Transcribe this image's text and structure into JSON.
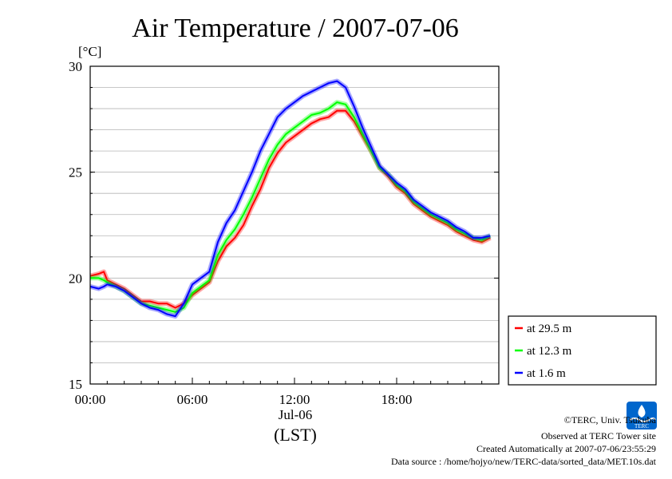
{
  "chart_data": {
    "type": "line",
    "title": "Air Temperature / 2007-07-06",
    "ylabel": "[°C]",
    "ylim": [
      15,
      30
    ],
    "yticks": [
      "15",
      "20",
      "25",
      "30"
    ],
    "xlim": [
      0,
      24
    ],
    "xticks": [
      "00:00",
      "06:00",
      "12:00",
      "18:00"
    ],
    "x_date_label": "Jul-06",
    "x_unit_label": "(LST)",
    "grid": true,
    "legend_position": "bottom-right outside",
    "series": [
      {
        "name": "at 29.5 m",
        "color": "#ff0000",
        "x": [
          0,
          0.5,
          0.8,
          1,
          1.5,
          2,
          2.5,
          3,
          3.5,
          4,
          4.5,
          5,
          5.5,
          6,
          6.5,
          7,
          7.5,
          8,
          8.5,
          9,
          9.5,
          10,
          10.5,
          11,
          11.5,
          12,
          12.5,
          13,
          13.5,
          14,
          14.5,
          15,
          15.5,
          16,
          16.5,
          17,
          17.5,
          18,
          18.5,
          19,
          19.5,
          20,
          20.5,
          21,
          21.5,
          22,
          22.5,
          23,
          23.5
        ],
        "values": [
          20.1,
          20.2,
          20.3,
          19.9,
          19.7,
          19.5,
          19.2,
          18.9,
          18.9,
          18.8,
          18.8,
          18.6,
          18.8,
          19.2,
          19.5,
          19.8,
          20.8,
          21.5,
          21.9,
          22.5,
          23.4,
          24.2,
          25.2,
          25.9,
          26.4,
          26.7,
          27.0,
          27.3,
          27.5,
          27.6,
          27.9,
          27.9,
          27.4,
          26.7,
          26.0,
          25.2,
          24.8,
          24.3,
          24.0,
          23.5,
          23.2,
          22.9,
          22.7,
          22.5,
          22.2,
          22.0,
          21.8,
          21.7,
          21.9
        ]
      },
      {
        "name": "at 12.3 m",
        "color": "#00ff00",
        "x": [
          0,
          0.5,
          0.8,
          1,
          1.5,
          2,
          2.5,
          3,
          3.5,
          4,
          4.5,
          5,
          5.5,
          6,
          6.5,
          7,
          7.5,
          8,
          8.5,
          9,
          9.5,
          10,
          10.5,
          11,
          11.5,
          12,
          12.5,
          13,
          13.5,
          14,
          14.5,
          15,
          15.5,
          16,
          16.5,
          17,
          17.5,
          18,
          18.5,
          19,
          19.5,
          20,
          20.5,
          21,
          21.5,
          22,
          22.5,
          23,
          23.5
        ],
        "values": [
          20.0,
          20.0,
          19.9,
          19.8,
          19.6,
          19.4,
          19.1,
          18.8,
          18.7,
          18.6,
          18.5,
          18.4,
          18.6,
          19.3,
          19.6,
          19.9,
          21.1,
          21.8,
          22.3,
          23.0,
          23.8,
          24.7,
          25.6,
          26.3,
          26.8,
          27.1,
          27.4,
          27.7,
          27.8,
          28.0,
          28.3,
          28.2,
          27.6,
          26.8,
          26.0,
          25.2,
          24.9,
          24.4,
          24.1,
          23.6,
          23.3,
          23.0,
          22.8,
          22.6,
          22.3,
          22.1,
          21.9,
          21.8,
          22.0
        ]
      },
      {
        "name": "at 1.6 m",
        "color": "#0000ff",
        "x": [
          0,
          0.5,
          0.8,
          1,
          1.5,
          2,
          2.5,
          3,
          3.5,
          4,
          4.5,
          5,
          5.5,
          6,
          6.5,
          7,
          7.5,
          8,
          8.5,
          9,
          9.5,
          10,
          10.5,
          11,
          11.5,
          12,
          12.5,
          13,
          13.5,
          14,
          14.5,
          15,
          15.5,
          16,
          16.5,
          17,
          17.5,
          18,
          18.5,
          19,
          19.5,
          20,
          20.5,
          21,
          21.5,
          22,
          22.5,
          23,
          23.5
        ],
        "values": [
          19.6,
          19.5,
          19.6,
          19.7,
          19.6,
          19.4,
          19.1,
          18.8,
          18.6,
          18.5,
          18.3,
          18.2,
          18.8,
          19.7,
          20.0,
          20.3,
          21.7,
          22.6,
          23.2,
          24.1,
          25.0,
          26.0,
          26.8,
          27.6,
          28.0,
          28.3,
          28.6,
          28.8,
          29.0,
          29.2,
          29.3,
          29.0,
          28.1,
          27.1,
          26.2,
          25.3,
          24.9,
          24.5,
          24.2,
          23.7,
          23.4,
          23.1,
          22.9,
          22.7,
          22.4,
          22.2,
          21.9,
          21.9,
          22.0
        ]
      }
    ]
  },
  "credits": {
    "copyright": "©TERC, Univ. Tsukuba",
    "observed": "Observed at TERC Tower site",
    "created": "Created Automatically at 2007-07-06/23:55:29",
    "source": "Data source : /home/hojyo/new/TERC-data/sorted_data/MET.10s.dat"
  },
  "logo": {
    "text": "TERC",
    "color": "#0066cc"
  }
}
